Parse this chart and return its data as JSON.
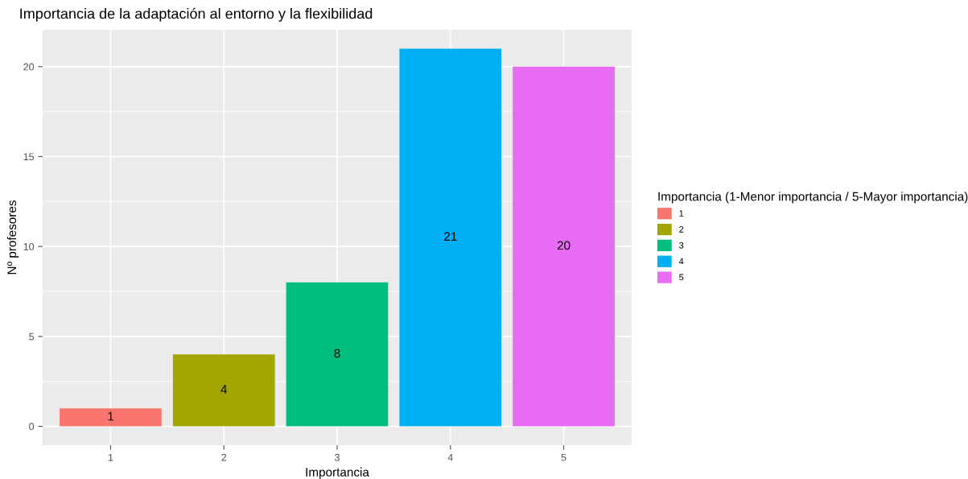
{
  "chart_data": {
    "type": "bar",
    "title": "Importancia de la adaptación al entorno y la flexibilidad",
    "xlabel": "Importancia",
    "ylabel": "Nº profesores",
    "categories": [
      "1",
      "2",
      "3",
      "4",
      "5"
    ],
    "series": [
      {
        "name": "1",
        "color": "#f8766d",
        "values": [
          1,
          null,
          null,
          null,
          null
        ]
      },
      {
        "name": "2",
        "color": "#a3a500",
        "values": [
          null,
          4,
          null,
          null,
          null
        ]
      },
      {
        "name": "3",
        "color": "#00bf7d",
        "values": [
          null,
          null,
          8,
          null,
          null
        ]
      },
      {
        "name": "4",
        "color": "#00b0f6",
        "values": [
          null,
          null,
          null,
          21,
          null
        ]
      },
      {
        "name": "5",
        "color": "#e76bf3",
        "values": [
          null,
          null,
          null,
          null,
          20
        ]
      }
    ],
    "ylim": [
      -1.05,
      22.05
    ],
    "yticks": [
      0,
      5,
      10,
      15,
      20
    ],
    "grid": true,
    "data_labels": true,
    "legend": "right",
    "legend_title": "Importancia (1-Menor importancia / 5-Mayor importancia)"
  }
}
